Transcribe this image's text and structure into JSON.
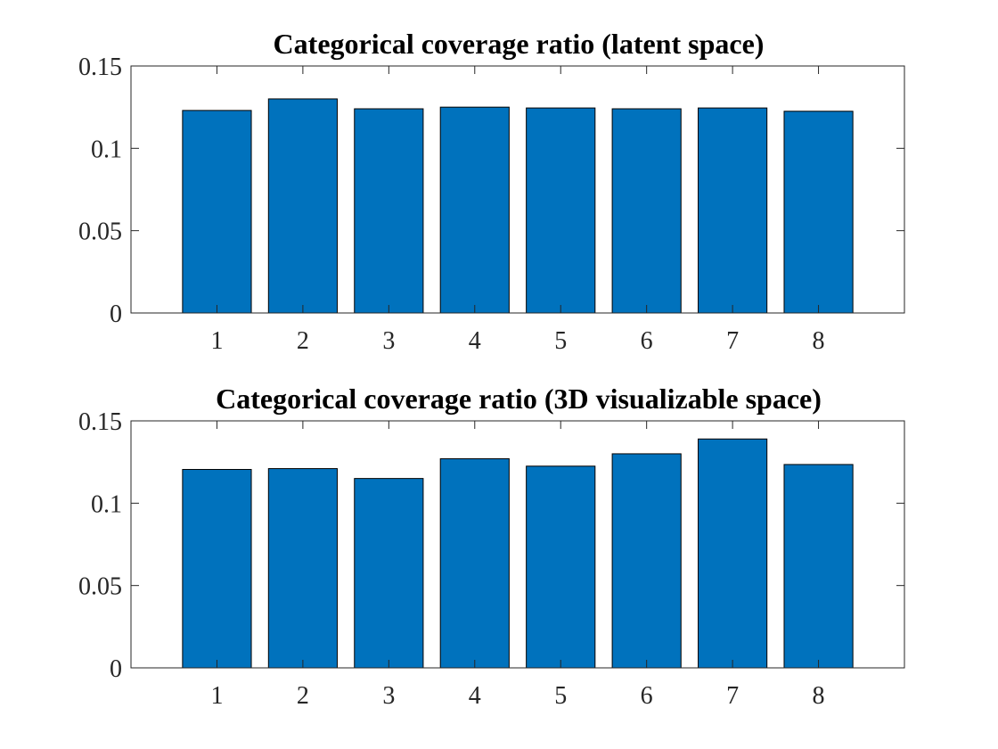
{
  "colors": {
    "bar_fill": "#0072BD",
    "bar_edge": "#000000",
    "axis": "#262626",
    "background": "#ffffff"
  },
  "chart_data": [
    {
      "type": "bar",
      "title": "Categorical coverage ratio (latent space)",
      "xlabel": "",
      "ylabel": "",
      "categories": [
        "1",
        "2",
        "3",
        "4",
        "5",
        "6",
        "7",
        "8"
      ],
      "values": [
        0.123,
        0.13,
        0.124,
        0.125,
        0.1245,
        0.124,
        0.1245,
        0.1225
      ],
      "ylim": [
        0,
        0.15
      ],
      "xlim": [
        0,
        9
      ],
      "yticks": [
        0,
        0.05,
        0.1,
        0.15
      ],
      "ytick_labels": [
        "0",
        "0.05",
        "0.1",
        "0.15"
      ],
      "grid": false,
      "legend": "none"
    },
    {
      "type": "bar",
      "title": "Categorical coverage ratio (3D visualizable space)",
      "xlabel": "",
      "ylabel": "",
      "categories": [
        "1",
        "2",
        "3",
        "4",
        "5",
        "6",
        "7",
        "8"
      ],
      "values": [
        0.1205,
        0.121,
        0.115,
        0.127,
        0.1225,
        0.13,
        0.139,
        0.1235
      ],
      "ylim": [
        0,
        0.15
      ],
      "xlim": [
        0,
        9
      ],
      "yticks": [
        0,
        0.05,
        0.1,
        0.15
      ],
      "ytick_labels": [
        "0",
        "0.05",
        "0.1",
        "0.15"
      ],
      "grid": false,
      "legend": "none"
    }
  ]
}
